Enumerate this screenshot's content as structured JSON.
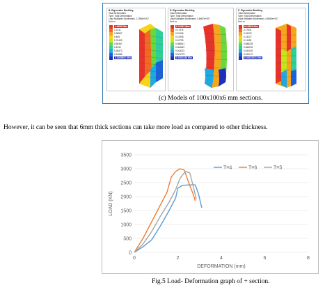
{
  "panels": [
    {
      "title": "B: Eigenvalue Buckling",
      "lines": [
        "Total Deformation",
        "Type: Total Deformation",
        "Load Multiplier (Nonlinear): 2.1396e+007",
        "Unit: m"
      ],
      "max_label": "1.2632 Max",
      "levels": [
        "1.1211",
        "0.98567",
        "0.845",
        "0.70433",
        "0.56367",
        "0.4230",
        "0.28473",
        "0.14666"
      ],
      "min_label": "0.0045891 Min"
    },
    {
      "title": "D: Eigenvalue Buckling",
      "lines": [
        "Total Deformation",
        "Type: Total Deformation",
        "Load Multiplier (Nonlinear): 3.6667e+007",
        "Unit: m"
      ],
      "max_label": "0.19451 Max",
      "levels": [
        "0.17374",
        "0.15106",
        "0.12945",
        "0.10793",
        "0.086611",
        "0.064667",
        "0.043321",
        "0.021779"
      ],
      "min_label": "0.0002348 Min"
    },
    {
      "title": "F: Eigenvalue Buckling",
      "lines": [
        "Total Deformation",
        "Type: Total Deformation",
        "Load Multiplier (Nonlinear): 4.5845e+007",
        "Unit: m"
      ],
      "max_label": "0.19833 Max",
      "levels": [
        "0.17631",
        "0.15429",
        "0.13227",
        "0.11025",
        "0.088225",
        "0.066203",
        "0.044192",
        "0.022172"
      ],
      "min_label": "0.00015331 Min"
    }
  ],
  "figure_caption": "(c)  Models of 100x100x6 mm sections.",
  "body_text": "However, it can be seen that 6mm thick sections can take more load as compared to other thickness.",
  "figure5_caption": "Fig.5 Load- Deformation graph of + section.",
  "colors": {
    "legend": [
      "#e8332a",
      "#ef6a22",
      "#f7a51b",
      "#f4d51a",
      "#c3e61c",
      "#69d83c",
      "#2fcf9a",
      "#1fa9e1",
      "#1c62d8",
      "#1e2fbf"
    ],
    "series": [
      "#5b9bd5",
      "#ed7d31",
      "#a5a5a5"
    ]
  },
  "chart_data": {
    "type": "line",
    "title": "",
    "xlabel": "DEFORMATION (mm)",
    "ylabel": "LOAD (KN)",
    "xlim": [
      0,
      8
    ],
    "ylim": [
      0,
      3500
    ],
    "xticks": [
      "0",
      "2",
      "4",
      "6",
      "8"
    ],
    "yticks": [
      "0",
      "500",
      "1000",
      "1500",
      "2000",
      "2500",
      "3000",
      "3500"
    ],
    "legend_position": "top",
    "grid": "horizontal",
    "series": [
      {
        "name": "T=4",
        "x": [
          0,
          0.4,
          0.8,
          1.2,
          1.6,
          1.9,
          2.0,
          2.2,
          2.5,
          2.8,
          2.95,
          3.1
        ],
        "y": [
          0,
          200,
          450,
          950,
          1500,
          1950,
          2300,
          2400,
          2420,
          2420,
          2100,
          1600
        ]
      },
      {
        "name": "T=6",
        "x": [
          0,
          0.4,
          0.8,
          1.2,
          1.5,
          1.7,
          1.9,
          2.1,
          2.3,
          2.5,
          2.7,
          2.8
        ],
        "y": [
          0,
          500,
          1100,
          1700,
          2150,
          2700,
          2900,
          3000,
          2950,
          2500,
          2100,
          1850
        ]
      },
      {
        "name": "T=5",
        "x": [
          0,
          0.4,
          0.8,
          1.2,
          1.6,
          1.9,
          2.1,
          2.35,
          2.55,
          2.7,
          2.85
        ],
        "y": [
          0,
          300,
          750,
          1300,
          1800,
          2250,
          2650,
          2900,
          2850,
          2400,
          1900
        ]
      }
    ]
  }
}
